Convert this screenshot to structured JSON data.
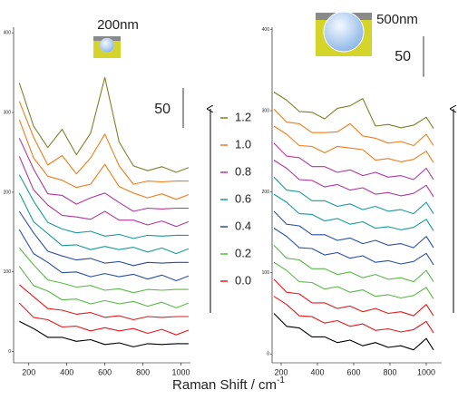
{
  "chart_data": [
    {
      "type": "line",
      "annotation": "200nm",
      "scale_bar": {
        "value": 50,
        "label": "50"
      },
      "x": [
        150,
        225,
        300,
        375,
        450,
        525,
        600,
        675,
        750,
        825,
        900,
        975,
        1040
      ],
      "xlim": [
        120,
        1050
      ],
      "xticks": [
        200,
        400,
        600,
        800,
        1000
      ],
      "ylim": [
        -14,
        407
      ],
      "yticks": [
        0,
        100,
        200,
        300,
        400
      ],
      "series": [
        {
          "color": "#000000",
          "values": [
            38,
            29,
            18,
            18,
            13,
            15,
            9,
            11,
            6,
            10,
            9,
            10,
            10
          ]
        },
        {
          "color": "#e41a1c",
          "values": [
            61,
            43,
            40,
            31,
            32,
            26,
            30,
            26,
            29,
            23,
            28,
            21,
            27
          ]
        },
        {
          "color": "#e41a1c",
          "values": [
            84,
            69,
            54,
            52,
            47,
            49,
            43,
            45,
            40,
            44,
            43,
            44,
            44
          ]
        },
        {
          "color": "#5cb848",
          "values": [
            107,
            83,
            76,
            65,
            66,
            60,
            64,
            60,
            63,
            57,
            62,
            55,
            61
          ]
        },
        {
          "color": "#5cb848",
          "values": [
            130,
            109,
            90,
            86,
            81,
            83,
            77,
            79,
            74,
            78,
            77,
            78,
            78
          ]
        },
        {
          "color": "#2b4fa0",
          "values": [
            153,
            123,
            112,
            99,
            100,
            94,
            98,
            94,
            97,
            91,
            96,
            89,
            95
          ]
        },
        {
          "color": "#2b4fa0",
          "values": [
            176,
            149,
            126,
            120,
            115,
            117,
            111,
            113,
            108,
            112,
            111,
            112,
            112
          ]
        },
        {
          "color": "#1a9a9a",
          "values": [
            199,
            163,
            148,
            133,
            134,
            128,
            132,
            128,
            131,
            125,
            130,
            123,
            129
          ]
        },
        {
          "color": "#1a9a9a",
          "values": [
            222,
            189,
            162,
            154,
            149,
            151,
            145,
            147,
            142,
            146,
            145,
            146,
            146
          ]
        },
        {
          "color": "#b0399e",
          "values": [
            245,
            203,
            184,
            171,
            169,
            166,
            176,
            165,
            165,
            159,
            164,
            157,
            163
          ]
        },
        {
          "color": "#b0399e",
          "values": [
            268,
            229,
            198,
            196,
            185,
            193,
            199,
            187,
            176,
            180,
            179,
            180,
            180
          ]
        },
        {
          "color": "#f07d1a",
          "values": [
            291,
            243,
            220,
            215,
            206,
            210,
            235,
            207,
            199,
            193,
            198,
            191,
            197
          ]
        },
        {
          "color": "#f07d1a",
          "values": [
            314,
            269,
            234,
            246,
            223,
            243,
            273,
            233,
            210,
            214,
            213,
            214,
            214
          ]
        },
        {
          "color": "#7f7f2a",
          "values": [
            337,
            283,
            256,
            279,
            247,
            274,
            344,
            263,
            233,
            227,
            232,
            225,
            231
          ]
        }
      ]
    },
    {
      "type": "line",
      "annotation": "500nm",
      "scale_bar": {
        "value": 50,
        "label": "50"
      },
      "x": [
        160,
        230,
        300,
        370,
        440,
        510,
        580,
        650,
        720,
        790,
        860,
        930,
        1000,
        1040
      ],
      "xlim": [
        150,
        1085
      ],
      "xticks": [
        200,
        400,
        600,
        800,
        1000
      ],
      "ylim": [
        -11,
        403
      ],
      "yticks": [
        0,
        100,
        200,
        300,
        400
      ],
      "series": [
        {
          "color": "#000000",
          "values": [
            50,
            34,
            32,
            21,
            21,
            14,
            17,
            10,
            14,
            8,
            10,
            5,
            19,
            5
          ]
        },
        {
          "color": "#e41a1c",
          "values": [
            71,
            61,
            47,
            46,
            38,
            41,
            34,
            37,
            29,
            31,
            27,
            30,
            40,
            26
          ]
        },
        {
          "color": "#e41a1c",
          "values": [
            92,
            76,
            74,
            63,
            63,
            56,
            59,
            52,
            56,
            50,
            52,
            47,
            61,
            47
          ]
        },
        {
          "color": "#5cb848",
          "values": [
            113,
            103,
            89,
            88,
            80,
            83,
            76,
            79,
            71,
            73,
            69,
            72,
            82,
            68
          ]
        },
        {
          "color": "#5cb848",
          "values": [
            134,
            118,
            116,
            105,
            105,
            98,
            101,
            94,
            98,
            92,
            94,
            89,
            103,
            89
          ]
        },
        {
          "color": "#2b4fa0",
          "values": [
            155,
            145,
            131,
            130,
            122,
            125,
            118,
            121,
            113,
            115,
            111,
            114,
            124,
            110
          ]
        },
        {
          "color": "#2b4fa0",
          "values": [
            176,
            160,
            158,
            147,
            147,
            140,
            143,
            136,
            140,
            134,
            136,
            131,
            145,
            131
          ]
        },
        {
          "color": "#1a9a9a",
          "values": [
            197,
            187,
            173,
            172,
            164,
            167,
            160,
            163,
            155,
            157,
            153,
            156,
            166,
            152
          ]
        },
        {
          "color": "#1a9a9a",
          "values": [
            218,
            202,
            200,
            189,
            189,
            182,
            185,
            178,
            182,
            176,
            178,
            173,
            187,
            173
          ]
        },
        {
          "color": "#b0399e",
          "values": [
            239,
            229,
            215,
            214,
            206,
            209,
            202,
            205,
            197,
            199,
            195,
            198,
            208,
            194
          ]
        },
        {
          "color": "#b0399e",
          "values": [
            260,
            244,
            242,
            231,
            231,
            224,
            227,
            220,
            224,
            218,
            220,
            215,
            229,
            215
          ]
        },
        {
          "color": "#f07d1a",
          "values": [
            281,
            271,
            257,
            256,
            248,
            256,
            254,
            252,
            239,
            241,
            237,
            240,
            250,
            236
          ]
        },
        {
          "color": "#f07d1a",
          "values": [
            302,
            286,
            284,
            273,
            273,
            274,
            284,
            269,
            266,
            260,
            262,
            257,
            271,
            257
          ]
        },
        {
          "color": "#7f7f2a",
          "values": [
            323,
            313,
            299,
            298,
            290,
            303,
            306,
            315,
            281,
            283,
            279,
            282,
            292,
            278
          ]
        }
      ]
    }
  ],
  "figure": {
    "xlabel": "Raman Shift / cm",
    "xlabel_sup": "-1",
    "legend": [
      {
        "label": "1.2",
        "color": "#7f7f2a"
      },
      {
        "label": "1.0",
        "color": "#f07d1a"
      },
      {
        "label": "0.8",
        "color": "#b0399e"
      },
      {
        "label": "0.6",
        "color": "#1a9a9a"
      },
      {
        "label": "0.4",
        "color": "#2b4fa0"
      },
      {
        "label": "0.2",
        "color": "#5cb848"
      },
      {
        "label": "0.0",
        "color": "#e41a1c"
      }
    ]
  }
}
